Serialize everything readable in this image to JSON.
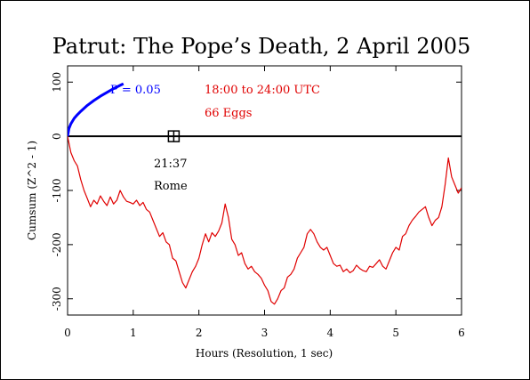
{
  "chart_data": {
    "type": "line",
    "title": "Patrut: The Pope’s Death, 2 April 2005",
    "xlabel": "Hours (Resolution, 1 sec)",
    "ylabel": "Cumsum (Z^2 - 1)",
    "xlim": [
      0,
      6
    ],
    "ylim": [
      -330,
      130
    ],
    "x_ticks": [
      0,
      1,
      2,
      3,
      4,
      5,
      6
    ],
    "y_ticks": [
      -300,
      -200,
      -100,
      0,
      100
    ],
    "x_tick_labels": [
      "0",
      "1",
      "2",
      "3",
      "4",
      "5",
      "6"
    ],
    "y_tick_labels": [
      "-300",
      "-200",
      "-100",
      "0",
      "100"
    ],
    "grid": false,
    "colors": {
      "data": "#e00000",
      "probability": "#0000ff",
      "axis": "#000000"
    },
    "series": [
      {
        "role": "cumulative-deviation",
        "color": "#e00000",
        "x": [
          0,
          0.05,
          0.1,
          0.15,
          0.2,
          0.25,
          0.3,
          0.35,
          0.4,
          0.45,
          0.5,
          0.55,
          0.6,
          0.65,
          0.7,
          0.75,
          0.8,
          0.85,
          0.9,
          0.95,
          1.0,
          1.05,
          1.1,
          1.15,
          1.2,
          1.25,
          1.3,
          1.35,
          1.4,
          1.45,
          1.5,
          1.55,
          1.6,
          1.65,
          1.7,
          1.75,
          1.8,
          1.85,
          1.9,
          1.95,
          2.0,
          2.05,
          2.1,
          2.15,
          2.2,
          2.25,
          2.3,
          2.35,
          2.4,
          2.45,
          2.5,
          2.55,
          2.6,
          2.65,
          2.7,
          2.75,
          2.8,
          2.85,
          2.9,
          2.95,
          3.0,
          3.05,
          3.1,
          3.15,
          3.2,
          3.25,
          3.3,
          3.35,
          3.4,
          3.45,
          3.5,
          3.55,
          3.6,
          3.65,
          3.7,
          3.75,
          3.8,
          3.85,
          3.9,
          3.95,
          4.0,
          4.05,
          4.1,
          4.15,
          4.2,
          4.25,
          4.3,
          4.35,
          4.4,
          4.45,
          4.5,
          4.55,
          4.6,
          4.65,
          4.7,
          4.75,
          4.8,
          4.85,
          4.9,
          4.95,
          5.0,
          5.05,
          5.1,
          5.15,
          5.2,
          5.25,
          5.3,
          5.35,
          5.4,
          5.45,
          5.5,
          5.55,
          5.6,
          5.65,
          5.7,
          5.75,
          5.8,
          5.85,
          5.9,
          5.95,
          6.0
        ],
        "y": [
          0,
          -30,
          -45,
          -55,
          -80,
          -100,
          -115,
          -130,
          -118,
          -125,
          -110,
          -120,
          -128,
          -112,
          -125,
          -118,
          -100,
          -112,
          -120,
          -122,
          -125,
          -118,
          -128,
          -122,
          -135,
          -140,
          -155,
          -170,
          -185,
          -178,
          -195,
          -200,
          -225,
          -230,
          -250,
          -270,
          -280,
          -265,
          -250,
          -240,
          -225,
          -200,
          -180,
          -195,
          -178,
          -185,
          -175,
          -160,
          -125,
          -150,
          -190,
          -200,
          -220,
          -215,
          -235,
          -245,
          -240,
          -250,
          -255,
          -262,
          -275,
          -285,
          -305,
          -310,
          -300,
          -285,
          -280,
          -260,
          -255,
          -245,
          -225,
          -215,
          -205,
          -180,
          -172,
          -180,
          -195,
          -205,
          -210,
          -205,
          -220,
          -235,
          -240,
          -238,
          -250,
          -245,
          -252,
          -248,
          -238,
          -244,
          -248,
          -250,
          -240,
          -242,
          -235,
          -228,
          -240,
          -245,
          -230,
          -215,
          -205,
          -210,
          -185,
          -180,
          -165,
          -155,
          -148,
          -140,
          -135,
          -130,
          -150,
          -165,
          -155,
          -150,
          -130,
          -90,
          -40,
          -75,
          -90,
          -105,
          -95
        ]
      },
      {
        "role": "probability-envelope",
        "name": "P = 0.05",
        "color": "#0000ff",
        "x": [
          0,
          0.02,
          0.05,
          0.1,
          0.15,
          0.2,
          0.3,
          0.4,
          0.5,
          0.6,
          0.7,
          0.8,
          0.85
        ],
        "y": [
          0,
          14,
          23,
          33,
          40,
          46,
          57,
          66,
          74,
          81,
          88,
          94,
          97
        ]
      }
    ],
    "annotations": {
      "p_label": "P = 0.05",
      "time_range": "18:00 to 24:00 UTC",
      "eggs": "66 Eggs",
      "marker_time": "21:37",
      "marker_label": "Rome",
      "marker_x": 1.617,
      "marker_y": 0
    }
  }
}
